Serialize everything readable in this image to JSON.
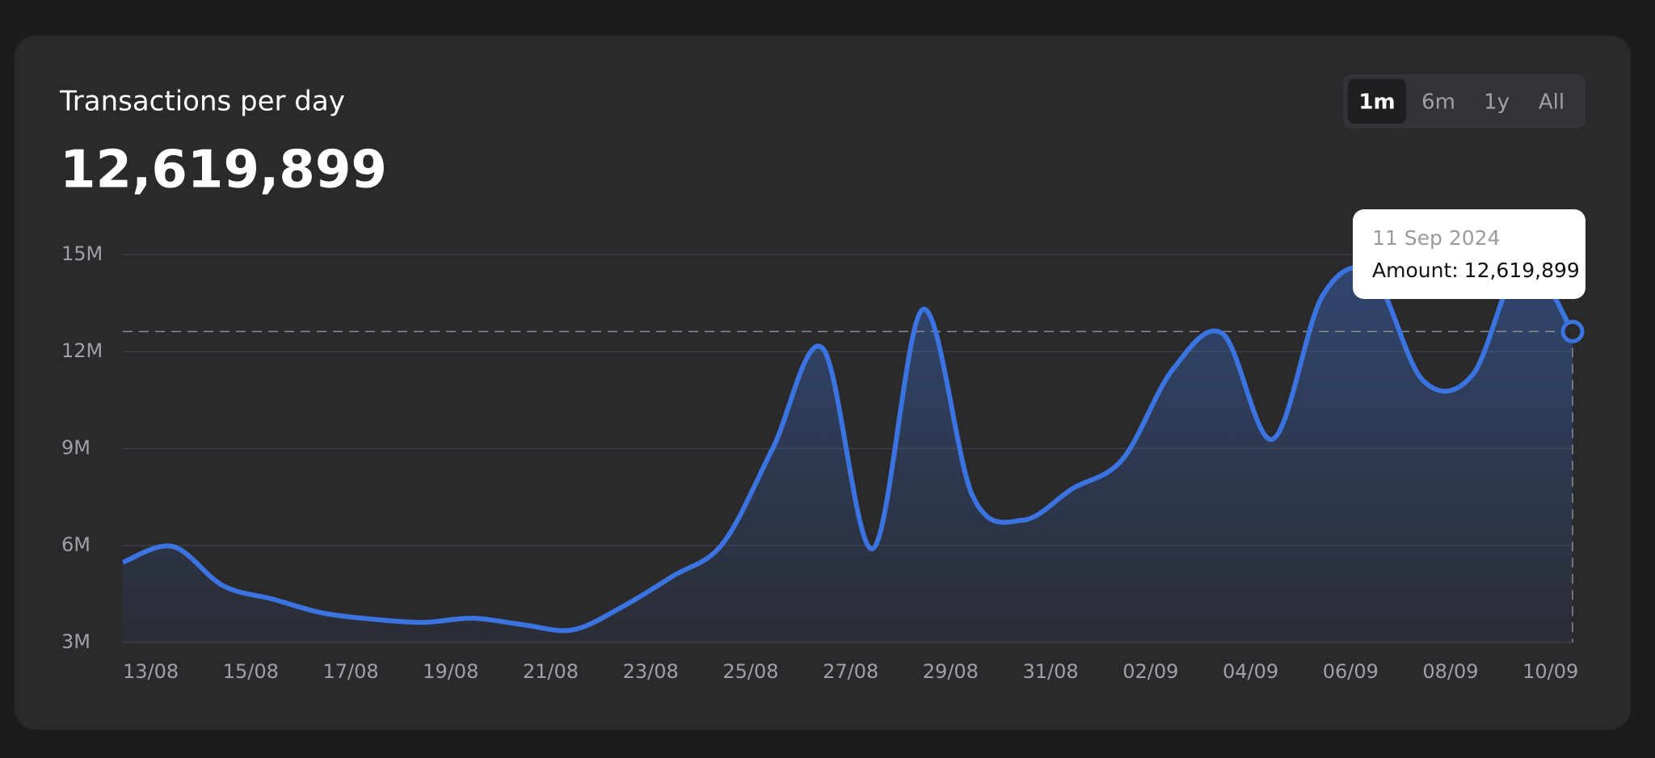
{
  "chart_data": {
    "type": "area",
    "title": "Transactions per day",
    "headline": "12,619,899",
    "range_options": [
      "1m",
      "6m",
      "1y",
      "All"
    ],
    "selected_range": "1m",
    "categories": [
      "13/08",
      null,
      "15/08",
      null,
      "17/08",
      null,
      "19/08",
      null,
      "21/08",
      null,
      "23/08",
      null,
      "25/08",
      null,
      "27/08",
      null,
      "29/08",
      null,
      "31/08",
      null,
      "02/09",
      null,
      "04/09",
      null,
      "06/09",
      null,
      "08/09",
      null,
      "10/09",
      null
    ],
    "values": [
      5480000,
      5970000,
      4760000,
      4340000,
      3910000,
      3720000,
      3620000,
      3750000,
      3550000,
      3390000,
      4110000,
      5050000,
      6060000,
      9000000,
      12100000,
      5900000,
      13300000,
      7530000,
      6780000,
      7760000,
      8670000,
      11440000,
      12550000,
      9290000,
      13730000,
      14380000,
      11120000,
      11280000,
      14800000,
      12619899
    ],
    "color": "#3b74e0",
    "ylim": [
      3000000,
      15000000
    ],
    "yticks": [
      {
        "value": 3000000,
        "label": "3M"
      },
      {
        "value": 6000000,
        "label": "6M"
      },
      {
        "value": 9000000,
        "label": "9M"
      },
      {
        "value": 12000000,
        "label": "12M"
      },
      {
        "value": 15000000,
        "label": "15M"
      }
    ],
    "grid": true,
    "tooltip": {
      "date": "11 Sep 2024",
      "label": "Amount:",
      "value": "12,619,899"
    }
  }
}
